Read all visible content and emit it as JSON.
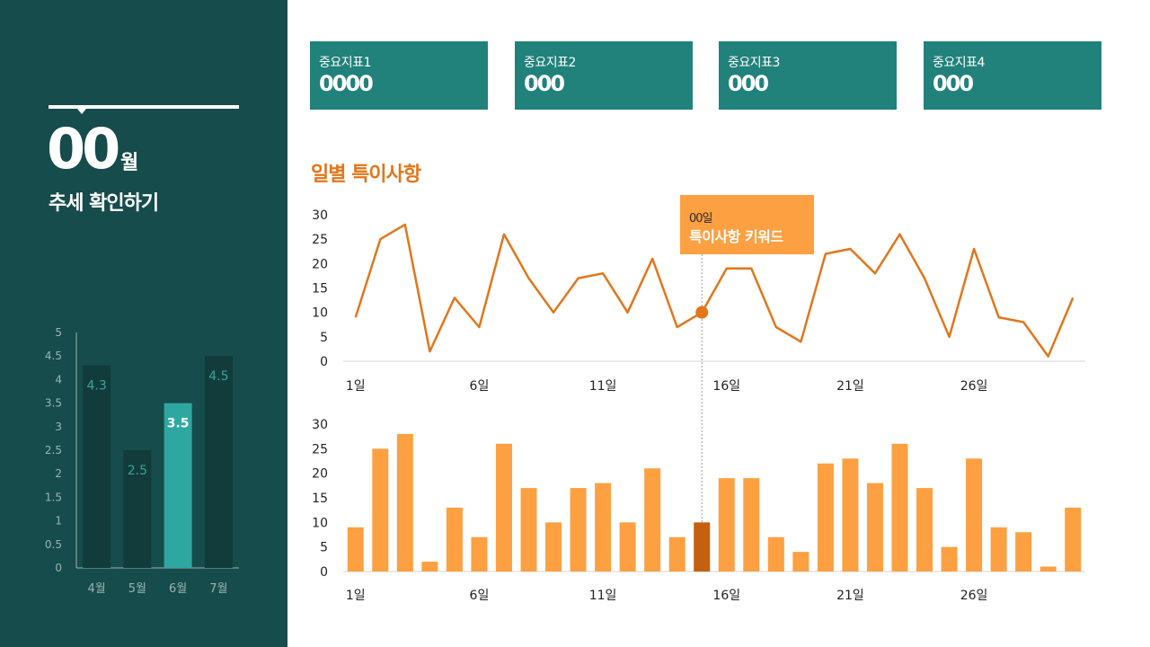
{
  "sidebar": {
    "month_number": "00",
    "month_suffix": "월",
    "subtitle": "추세 확인하기"
  },
  "kpis": [
    {
      "label": "중요지표1",
      "value": "0000"
    },
    {
      "label": "중요지표2",
      "value": "000"
    },
    {
      "label": "중요지표3",
      "value": "000"
    },
    {
      "label": "중요지표4",
      "value": "000"
    }
  ],
  "section": {
    "title": "일별 특이사항"
  },
  "callout": {
    "day": "00일",
    "keyword": "특이사항 키워드"
  },
  "colors": {
    "sidebar_bg": "#164c4b",
    "kpi_bg": "#21817b",
    "line": "#e1761b",
    "bar": "#fca041",
    "bar_highlight": "#c4600f",
    "side_bar": "#113c3b",
    "side_bar_highlight": "#2ea7a1"
  },
  "chart_data": [
    {
      "type": "bar",
      "categories": [
        "4월",
        "5월",
        "6월",
        "7월"
      ],
      "values": [
        4.3,
        2.5,
        3.5,
        4.5
      ],
      "data_labels": [
        "4.3",
        "2.5",
        "3.5",
        "4.5"
      ],
      "highlight_index": 2,
      "ylim": [
        0,
        5
      ],
      "y_ticks": [
        "0",
        "0.5",
        "1",
        "1.5",
        "2",
        "2.5",
        "3",
        "3.5",
        "4",
        "4.5",
        "5"
      ],
      "grid": false
    },
    {
      "type": "line",
      "x": [
        1,
        2,
        3,
        4,
        5,
        6,
        7,
        8,
        9,
        10,
        11,
        12,
        13,
        14,
        15,
        16,
        17,
        18,
        19,
        20,
        21,
        22,
        23,
        24,
        25,
        26,
        27,
        28,
        29,
        30
      ],
      "values": [
        9,
        25,
        28,
        2,
        13,
        7,
        26,
        17,
        10,
        17,
        18,
        10,
        21,
        7,
        10,
        19,
        19,
        7,
        4,
        22,
        23,
        18,
        26,
        17,
        5,
        23,
        9,
        8,
        1,
        13
      ],
      "highlight_index": 14,
      "ylim": [
        0,
        30
      ],
      "y_ticks": [
        "0",
        "5",
        "10",
        "15",
        "20",
        "25",
        "30"
      ],
      "x_tick_labels": [
        {
          "index": 0,
          "label": "1일"
        },
        {
          "index": 5,
          "label": "6일"
        },
        {
          "index": 10,
          "label": "11일"
        },
        {
          "index": 15,
          "label": "16일"
        },
        {
          "index": 20,
          "label": "21일"
        },
        {
          "index": 25,
          "label": "26일"
        }
      ],
      "grid": false
    },
    {
      "type": "bar",
      "x": [
        1,
        2,
        3,
        4,
        5,
        6,
        7,
        8,
        9,
        10,
        11,
        12,
        13,
        14,
        15,
        16,
        17,
        18,
        19,
        20,
        21,
        22,
        23,
        24,
        25,
        26,
        27,
        28,
        29,
        30
      ],
      "values": [
        9,
        25,
        28,
        2,
        13,
        7,
        26,
        17,
        10,
        17,
        18,
        10,
        21,
        7,
        10,
        19,
        19,
        7,
        4,
        22,
        23,
        18,
        26,
        17,
        5,
        23,
        9,
        8,
        1,
        13
      ],
      "highlight_index": 14,
      "ylim": [
        0,
        30
      ],
      "y_ticks": [
        "0",
        "5",
        "10",
        "15",
        "20",
        "25",
        "30"
      ],
      "x_tick_labels": [
        {
          "index": 0,
          "label": "1일"
        },
        {
          "index": 5,
          "label": "6일"
        },
        {
          "index": 10,
          "label": "11일"
        },
        {
          "index": 15,
          "label": "16일"
        },
        {
          "index": 20,
          "label": "21일"
        },
        {
          "index": 25,
          "label": "26일"
        }
      ],
      "grid": false
    }
  ]
}
